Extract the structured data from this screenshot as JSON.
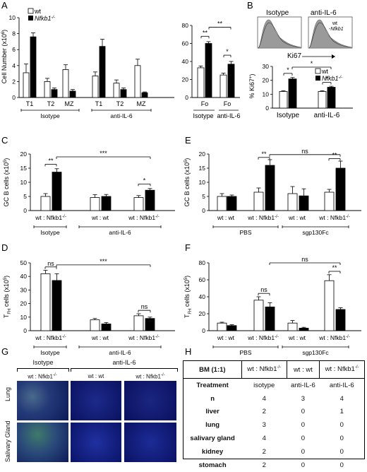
{
  "panel_labels": [
    "A",
    "B",
    "C",
    "D",
    "E",
    "F",
    "G",
    "H"
  ],
  "legend": {
    "wt": "wt",
    "ko": "Nfkb1",
    "ko_sup": "-/-"
  },
  "chart_data": [
    {
      "id": "A1",
      "type": "bar",
      "ylabel": "Cell Number (x10",
      "ylabel_sup": "6",
      "ylim": [
        0,
        10
      ],
      "yticks": [
        0,
        2,
        4,
        6,
        8,
        10
      ],
      "categories": [
        "T1",
        "T2",
        "MZ",
        "T1",
        "T2",
        "MZ"
      ],
      "groups": [
        "Isotype",
        "anti-IL-6"
      ],
      "series": [
        {
          "name": "wt",
          "values": [
            3.1,
            2.0,
            3.5,
            2.7,
            1.8,
            4.0
          ],
          "err": [
            1.1,
            0.4,
            0.6,
            0.5,
            0.4,
            0.8
          ]
        },
        {
          "name": "Nfkb1-/-",
          "values": [
            7.6,
            1.0,
            0.8,
            6.4,
            1.0,
            0.6
          ],
          "err": [
            0.5,
            0.2,
            0.2,
            0.9,
            0.2,
            0.1
          ]
        }
      ]
    },
    {
      "id": "A2",
      "type": "bar",
      "ylim": [
        0,
        80
      ],
      "yticks": [
        0,
        20,
        40,
        60,
        80
      ],
      "categories": [
        "Fo",
        "Fo"
      ],
      "groups": [
        "Isotype",
        "anti-IL-6"
      ],
      "series": [
        {
          "name": "wt",
          "values": [
            33,
            25
          ],
          "err": [
            2,
            2
          ]
        },
        {
          "name": "Nfkb1-/-",
          "values": [
            60,
            37
          ],
          "err": [
            2,
            3
          ]
        }
      ],
      "annotations": [
        "**",
        "**",
        "*"
      ]
    },
    {
      "id": "B",
      "type": "bar",
      "ylabel": "% Ki67",
      "ylabel_sup": "+",
      "ylim": [
        0,
        30
      ],
      "yticks": [
        0,
        10,
        20,
        30
      ],
      "categories": [
        "Isotype",
        "anti-IL-6"
      ],
      "series": [
        {
          "name": "wt",
          "values": [
            12,
            12
          ],
          "err": [
            0.5,
            0.5
          ]
        },
        {
          "name": "Nfkb1-/-",
          "values": [
            21,
            15
          ],
          "err": [
            1,
            0.7
          ]
        }
      ],
      "annotations": [
        "*",
        "*",
        "*"
      ],
      "histogram": {
        "titles": [
          "Isotype",
          "anti-IL-6"
        ],
        "xlabel": "Ki67",
        "legend": [
          "wt",
          "Nfkb1"
        ]
      }
    },
    {
      "id": "C",
      "type": "bar",
      "ylabel": "GC B cells (x10",
      "ylabel_sup": "5",
      "ylim": [
        0,
        20
      ],
      "yticks": [
        0,
        5,
        10,
        15,
        20
      ],
      "pairs": [
        "wt : Nfkb1",
        "wt : wt",
        "wt : Nfkb1"
      ],
      "values": [
        5,
        13.6,
        4.6,
        5,
        4.6,
        7.2
      ],
      "err": [
        1,
        1.2,
        1,
        0.7,
        0.7,
        0.6
      ],
      "groups": [
        "Isotype",
        "anti-IL-6"
      ],
      "annotations": [
        "**",
        "***",
        "*"
      ]
    },
    {
      "id": "D",
      "type": "bar",
      "ylabel": "T",
      "ylabel_sub": "FH",
      "ylabel2": " cells (x10",
      "ylabel_sup": "5",
      "ylim": [
        0,
        50
      ],
      "yticks": [
        0,
        10,
        20,
        30,
        40,
        50
      ],
      "pairs": [
        "wt : Nfkb1",
        "wt : wt",
        "wt : Nfkb1"
      ],
      "values": [
        42,
        37,
        8,
        5,
        11,
        9
      ],
      "err": [
        2.5,
        5,
        1,
        1,
        1.5,
        1
      ],
      "groups": [
        "Isotype",
        "anti-IL-6"
      ],
      "annotations": [
        "ns",
        "***",
        "ns"
      ]
    },
    {
      "id": "E",
      "type": "bar",
      "ylabel": "GC B cells (x10",
      "ylabel_sup": "5",
      "ylim": [
        0,
        20
      ],
      "yticks": [
        0,
        5,
        10,
        15,
        20
      ],
      "pairs": [
        "wt : wt",
        "wt : Nfkb1",
        "wt : wt",
        "wt : Nfkb1"
      ],
      "values": [
        5,
        5,
        6.5,
        16,
        6,
        5.2,
        6.5,
        15
      ],
      "err": [
        1,
        0.5,
        1.5,
        2,
        2.5,
        2.5,
        1,
        2.5
      ],
      "groups": [
        "PBS",
        "sgp130Fc"
      ],
      "annotations": [
        "**",
        "ns",
        "**"
      ]
    },
    {
      "id": "F",
      "type": "bar",
      "ylabel": "T",
      "ylabel_sub": "FH",
      "ylabel2": " cells (x10",
      "ylabel_sup": "5",
      "ylim": [
        0,
        80
      ],
      "yticks": [
        0,
        20,
        40,
        60,
        80
      ],
      "pairs": [
        "wt : wt",
        "wt : Nfkb1",
        "wt : wt",
        "wt : Nfkb1"
      ],
      "values": [
        9,
        6,
        36,
        28,
        9,
        3,
        59,
        25
      ],
      "err": [
        1,
        1,
        4,
        5,
        3,
        1,
        7,
        2
      ],
      "groups": [
        "PBS",
        "sgp130Fc"
      ],
      "annotations": [
        "ns",
        "ns",
        "**"
      ]
    }
  ],
  "panelG": {
    "groups": [
      "Isotype",
      "anti-IL-6"
    ],
    "cols": [
      "wt : Nfkb1",
      "wt : wt",
      "wt : Nfkb1"
    ],
    "rows": [
      "Lung",
      "Salivary Gland"
    ]
  },
  "table": {
    "header": [
      "BM (1:1)",
      "wt : Nfkb1",
      "wt : wt",
      "wt : Nfkb1"
    ],
    "rows": [
      [
        "Treatment",
        "isotype",
        "anti-IL-6",
        "anti-IL-6"
      ],
      [
        "n",
        "4",
        "3",
        "4"
      ],
      [
        "liver",
        "2",
        "0",
        "1"
      ],
      [
        "lung",
        "3",
        "0",
        "0"
      ],
      [
        "salivary gland",
        "4",
        "0",
        "0"
      ],
      [
        "kidney",
        "2",
        "0",
        "0"
      ],
      [
        "stomach",
        "2",
        "0",
        "0"
      ]
    ]
  },
  "sup_ko": "-/-"
}
